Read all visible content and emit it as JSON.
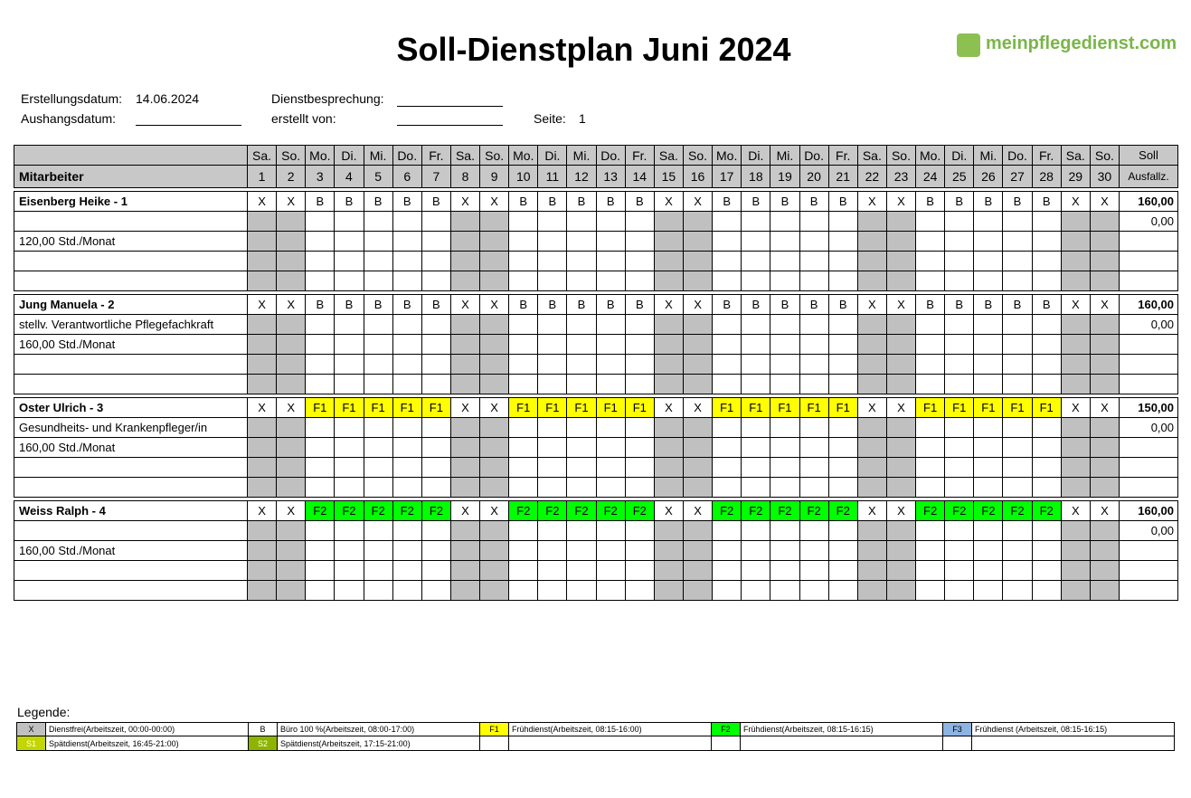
{
  "header": {
    "title": "Soll-Dienstplan Juni 2024",
    "logo": "meinpflegedienst.com",
    "fields": {
      "created_label": "Erstellungsdatum:",
      "created_value": "14.06.2024",
      "meeting_label": "Dienstbesprechung:",
      "posted_label": "Aushangsdatum:",
      "author_label": "erstellt von:",
      "page_label": "Seite:",
      "page_value": "1"
    }
  },
  "table": {
    "employee_header": "Mitarbeiter",
    "target_header": "Soll",
    "absence_header": "Ausfallz.",
    "weekdays": [
      "Sa.",
      "So.",
      "Mo.",
      "Di.",
      "Mi.",
      "Do.",
      "Fr.",
      "Sa.",
      "So.",
      "Mo.",
      "Di.",
      "Mi.",
      "Do.",
      "Fr.",
      "Sa.",
      "So.",
      "Mo.",
      "Di.",
      "Mi.",
      "Do.",
      "Fr.",
      "Sa.",
      "So.",
      "Mo.",
      "Di.",
      "Mi.",
      "Do.",
      "Fr.",
      "Sa.",
      "So."
    ],
    "days": [
      1,
      2,
      3,
      4,
      5,
      6,
      7,
      8,
      9,
      10,
      11,
      12,
      13,
      14,
      15,
      16,
      17,
      18,
      19,
      20,
      21,
      22,
      23,
      24,
      25,
      26,
      27,
      28,
      29,
      30
    ],
    "employees": [
      {
        "name": "Eisenberg Heike - 1",
        "hours": "120,00 Std./Monat",
        "target": "160,00",
        "absence": "0,00",
        "shifts": [
          "X",
          "X",
          "B",
          "B",
          "B",
          "B",
          "B",
          "X",
          "X",
          "B",
          "B",
          "B",
          "B",
          "B",
          "X",
          "X",
          "B",
          "B",
          "B",
          "B",
          "B",
          "X",
          "X",
          "B",
          "B",
          "B",
          "B",
          "B",
          "X",
          "X"
        ]
      },
      {
        "name": "Jung Manuela - 2",
        "role": "stellv. Verantwortliche Pflegefachkraft",
        "hours": "160,00 Std./Monat",
        "target": "160,00",
        "absence": "0,00",
        "shifts": [
          "X",
          "X",
          "B",
          "B",
          "B",
          "B",
          "B",
          "X",
          "X",
          "B",
          "B",
          "B",
          "B",
          "B",
          "X",
          "X",
          "B",
          "B",
          "B",
          "B",
          "B",
          "X",
          "X",
          "B",
          "B",
          "B",
          "B",
          "B",
          "X",
          "X"
        ]
      },
      {
        "name": "Oster Ulrich - 3",
        "role": "Gesundheits- und Krankenpfleger/in",
        "hours": "160,00 Std./Monat",
        "target": "150,00",
        "absence": "0,00",
        "shifts": [
          "X",
          "X",
          "F1",
          "F1",
          "F1",
          "F1",
          "F1",
          "X",
          "X",
          "F1",
          "F1",
          "F1",
          "F1",
          "F1",
          "X",
          "X",
          "F1",
          "F1",
          "F1",
          "F1",
          "F1",
          "X",
          "X",
          "F1",
          "F1",
          "F1",
          "F1",
          "F1",
          "X",
          "X"
        ]
      },
      {
        "name": "Weiss Ralph - 4",
        "hours": "160,00 Std./Monat",
        "target": "160,00",
        "absence": "0,00",
        "shifts": [
          "X",
          "X",
          "F2",
          "F2",
          "F2",
          "F2",
          "F2",
          "X",
          "X",
          "F2",
          "F2",
          "F2",
          "F2",
          "F2",
          "X",
          "X",
          "F2",
          "F2",
          "F2",
          "F2",
          "F2",
          "X",
          "X",
          "F2",
          "F2",
          "F2",
          "F2",
          "F2",
          "X",
          "X"
        ]
      }
    ]
  },
  "legend": {
    "title": "Legende:",
    "items": [
      {
        "code": "X",
        "color": "#c0c0c0",
        "text": "Dienstfrei(Arbeitszeit, 00:00-00:00)"
      },
      {
        "code": "B",
        "color": "#ffffff",
        "text": "Büro 100 %(Arbeitszeit, 08:00-17:00)"
      },
      {
        "code": "F1",
        "color": "#ffff00",
        "text": "Frühdienst(Arbeitszeit, 08:15-16:00)"
      },
      {
        "code": "F2",
        "color": "#00ff00",
        "text": "Frühdienst(Arbeitszeit, 08:15-16:15)"
      },
      {
        "code": "F3",
        "color": "#8db4e2",
        "text": "Frühdienst (Arbeitszeit, 08:15-16:15)"
      },
      {
        "code": "S1",
        "color": "#c4d600",
        "text_color": "#ffffff",
        "text": "Spätdienst(Arbeitszeit, 16:45-21:00)"
      },
      {
        "code": "S2",
        "color": "#8cb400",
        "text_color": "#ffffff",
        "text": "Spätdienst(Arbeitszeit, 17:15-21:00)"
      }
    ]
  }
}
